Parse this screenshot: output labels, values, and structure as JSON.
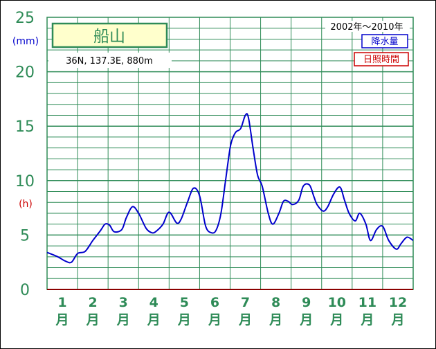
{
  "chart_data": {
    "type": "line",
    "title": "船山",
    "subtitle": "36N, 137.3E, 880m",
    "period": "2002年〜2010年",
    "y_unit_top": "(mm)",
    "y_unit_mid": "(h)",
    "yticks": [
      "0",
      "5",
      "10",
      "15",
      "20",
      "25"
    ],
    "ylim": [
      0,
      25
    ],
    "xlim": [
      0,
      12
    ],
    "months": [
      {
        "num": "1",
        "label": "月"
      },
      {
        "num": "2",
        "label": "月"
      },
      {
        "num": "3",
        "label": "月"
      },
      {
        "num": "4",
        "label": "月"
      },
      {
        "num": "5",
        "label": "月"
      },
      {
        "num": "6",
        "label": "月"
      },
      {
        "num": "7",
        "label": "月"
      },
      {
        "num": "8",
        "label": "月"
      },
      {
        "num": "9",
        "label": "月"
      },
      {
        "num": "10",
        "label": "月"
      },
      {
        "num": "11",
        "label": "月"
      },
      {
        "num": "12",
        "label": "月"
      }
    ],
    "grid": true,
    "legend_position": "top-right",
    "series": [
      {
        "name": "降水量",
        "color": "#0000cc",
        "x": [
          0,
          0.35,
          0.6,
          0.8,
          1.0,
          1.25,
          1.5,
          1.75,
          1.9,
          2.05,
          2.2,
          2.45,
          2.6,
          2.8,
          3.0,
          3.25,
          3.45,
          3.6,
          3.8,
          4.0,
          4.25,
          4.4,
          4.6,
          4.8,
          5.0,
          5.2,
          5.4,
          5.55,
          5.7,
          5.85,
          6.0,
          6.1,
          6.2,
          6.35,
          6.5,
          6.6,
          6.75,
          6.9,
          7.05,
          7.25,
          7.4,
          7.6,
          7.75,
          7.9,
          8.05,
          8.25,
          8.4,
          8.6,
          8.75,
          8.85,
          9.05,
          9.2,
          9.4,
          9.6,
          9.75,
          9.9,
          10.1,
          10.25,
          10.45,
          10.6,
          10.8,
          11.0,
          11.2,
          11.45,
          11.6,
          11.8,
          12.0
        ],
        "values": [
          3.4,
          3.0,
          2.6,
          2.5,
          3.3,
          3.5,
          4.5,
          5.4,
          6.0,
          5.9,
          5.3,
          5.5,
          6.6,
          7.6,
          7.0,
          5.6,
          5.2,
          5.4,
          6.0,
          7.1,
          6.1,
          6.5,
          8.0,
          9.3,
          8.6,
          5.8,
          5.2,
          5.5,
          7.0,
          10.0,
          13.0,
          14.0,
          14.5,
          14.8,
          16.0,
          15.8,
          13.0,
          10.5,
          9.5,
          7.0,
          6.0,
          7.0,
          8.1,
          8.1,
          7.8,
          8.2,
          9.5,
          9.6,
          8.5,
          7.8,
          7.2,
          7.6,
          8.8,
          9.4,
          8.2,
          7.0,
          6.3,
          7.0,
          6.0,
          4.5,
          5.5,
          5.8,
          4.5,
          3.7,
          4.2,
          4.8,
          4.5
        ]
      },
      {
        "name": "日照時間",
        "color": "#cc0000",
        "values": []
      }
    ]
  }
}
